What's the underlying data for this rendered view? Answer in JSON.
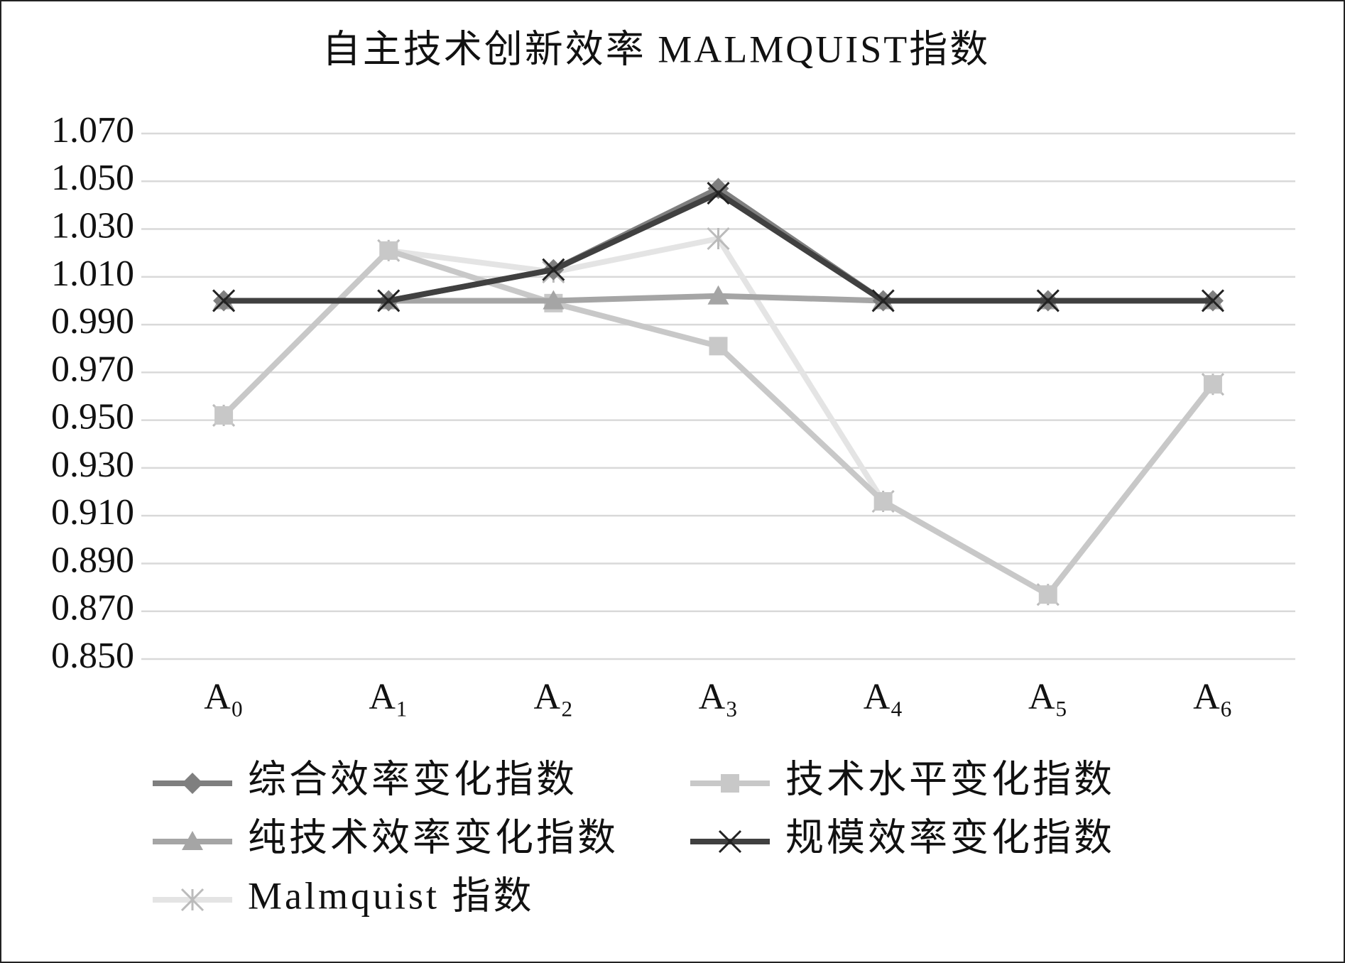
{
  "chart_data": {
    "type": "line",
    "title": "自主技术创新效率 MALMQUIST指数",
    "categories": [
      "A₀",
      "A₁",
      "A₂",
      "A₃",
      "A₄",
      "A₅",
      "A₆"
    ],
    "series": [
      {
        "name": "综合效率变化指数",
        "color": "#7f7f7f",
        "marker": "diamond",
        "values": [
          1.0,
          1.0,
          1.013,
          1.047,
          1.0,
          1.0,
          1.0
        ]
      },
      {
        "name": "技术水平变化指数",
        "color": "#c8c8c8",
        "marker": "square",
        "values": [
          0.952,
          1.021,
          0.999,
          0.981,
          0.916,
          0.877,
          0.965
        ]
      },
      {
        "name": "纯技术效率变化指数",
        "color": "#a5a5a5",
        "marker": "triangle",
        "values": [
          1.0,
          1.0,
          1.0,
          1.002,
          1.0,
          1.0,
          1.0
        ]
      },
      {
        "name": "规模效率变化指数",
        "color": "#404040",
        "marker": "x",
        "values": [
          1.0,
          1.0,
          1.013,
          1.045,
          1.0,
          1.0,
          1.0
        ]
      },
      {
        "name": "Malmquist 指数",
        "color": "#e4e4e4",
        "marker": "star",
        "values": [
          0.952,
          1.021,
          1.012,
          1.026,
          0.916,
          0.877,
          0.965
        ]
      }
    ],
    "ylim": [
      0.85,
      1.07
    ],
    "yticks": [
      {
        "value": 0.85,
        "label": "0.850"
      },
      {
        "value": 0.87,
        "label": "0.870"
      },
      {
        "value": 0.89,
        "label": "0.890"
      },
      {
        "value": 0.91,
        "label": "0.910"
      },
      {
        "value": 0.93,
        "label": "0.930"
      },
      {
        "value": 0.95,
        "label": "0.950"
      },
      {
        "value": 0.97,
        "label": "0.970"
      },
      {
        "value": 0.99,
        "label": "0.990"
      },
      {
        "value": 1.01,
        "label": "1.010"
      },
      {
        "value": 1.03,
        "label": "1.030"
      },
      {
        "value": 1.05,
        "label": "1.050"
      },
      {
        "value": 1.07,
        "label": "1.070"
      }
    ],
    "grid": true
  }
}
